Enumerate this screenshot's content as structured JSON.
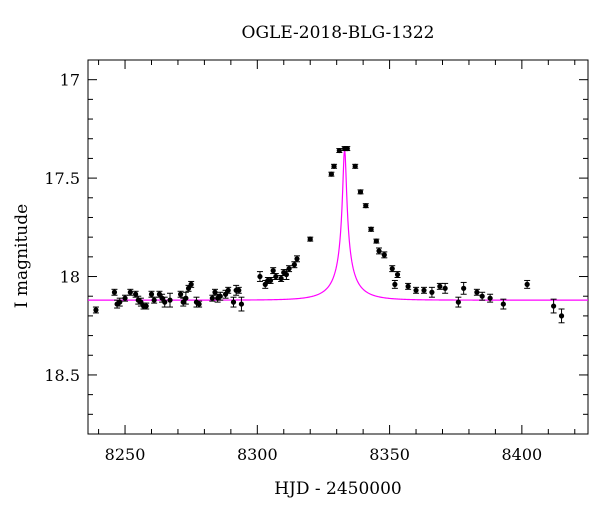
{
  "chart_data": {
    "type": "scatter",
    "title": "OGLE-2018-BLG-1322",
    "xlabel": "HJD - 2450000",
    "ylabel": "I magnitude",
    "xlim": [
      8236,
      8425
    ],
    "ylim": [
      18.8,
      16.9
    ],
    "y_inverted": true,
    "xticks": [
      8250,
      8300,
      8350,
      8400
    ],
    "yticks": [
      17,
      17.5,
      18,
      18.5
    ],
    "ytick_labels": [
      "17",
      "17.5",
      "18",
      "18.5"
    ],
    "grid": false,
    "legend": "none",
    "colors": {
      "data": "#000000",
      "model": "#ff00ff"
    },
    "model": {
      "name": "",
      "baseline_mag": 18.12,
      "peak_mag": 17.35,
      "t0": 8333,
      "tE": 11
    },
    "series": [
      {
        "name": "",
        "x": [
          8239,
          8246,
          8247,
          8248,
          8250,
          8252,
          8254,
          8255,
          8256,
          8257,
          8258,
          8260,
          8261,
          8263,
          8264,
          8265,
          8267,
          8271,
          8272,
          8273,
          8274,
          8275,
          8277,
          8278,
          8283,
          8284,
          8285,
          8286,
          8288,
          8289,
          8291,
          8292,
          8293,
          8294,
          8301,
          8303,
          8304,
          8305,
          8306,
          8307,
          8309,
          8310,
          8311,
          8312,
          8314,
          8315,
          8320,
          8328,
          8329,
          8331,
          8333,
          8334,
          8337,
          8339,
          8341,
          8343,
          8345,
          8346,
          8348,
          8351,
          8352,
          8353,
          8357,
          8360,
          8363,
          8366,
          8369,
          8371,
          8376,
          8378,
          8383,
          8385,
          8388,
          8393,
          8402,
          8412,
          8415
        ],
        "y": [
          18.17,
          18.08,
          18.14,
          18.13,
          18.11,
          18.08,
          18.09,
          18.12,
          18.13,
          18.15,
          18.15,
          18.09,
          18.12,
          18.09,
          18.11,
          18.13,
          18.12,
          18.09,
          18.13,
          18.11,
          18.06,
          18.04,
          18.13,
          18.14,
          18.11,
          18.08,
          18.11,
          18.1,
          18.09,
          18.07,
          18.13,
          18.07,
          18.07,
          18.14,
          18.0,
          18.04,
          18.02,
          18.02,
          17.97,
          18.0,
          18.01,
          17.98,
          17.99,
          17.96,
          17.94,
          17.91,
          17.81,
          17.48,
          17.44,
          17.36,
          17.35,
          17.35,
          17.44,
          17.57,
          17.64,
          17.76,
          17.82,
          17.87,
          17.89,
          17.96,
          18.04,
          17.99,
          18.05,
          18.07,
          18.07,
          18.08,
          18.05,
          18.06,
          18.13,
          18.06,
          18.08,
          18.1,
          18.11,
          18.14,
          18.04,
          18.15,
          18.2
        ],
        "yerr": [
          0.015,
          0.015,
          0.02,
          0.02,
          0.015,
          0.015,
          0.015,
          0.02,
          0.02,
          0.015,
          0.015,
          0.015,
          0.015,
          0.015,
          0.02,
          0.025,
          0.035,
          0.015,
          0.02,
          0.03,
          0.015,
          0.015,
          0.025,
          0.015,
          0.015,
          0.015,
          0.02,
          0.02,
          0.02,
          0.015,
          0.025,
          0.025,
          0.015,
          0.035,
          0.025,
          0.02,
          0.015,
          0.015,
          0.015,
          0.015,
          0.015,
          0.015,
          0.025,
          0.015,
          0.015,
          0.015,
          0.01,
          0.01,
          0.01,
          0.01,
          0.01,
          0.01,
          0.01,
          0.01,
          0.01,
          0.01,
          0.01,
          0.015,
          0.015,
          0.015,
          0.02,
          0.015,
          0.015,
          0.015,
          0.015,
          0.025,
          0.015,
          0.025,
          0.025,
          0.03,
          0.015,
          0.02,
          0.02,
          0.025,
          0.02,
          0.035,
          0.035
        ]
      }
    ]
  }
}
